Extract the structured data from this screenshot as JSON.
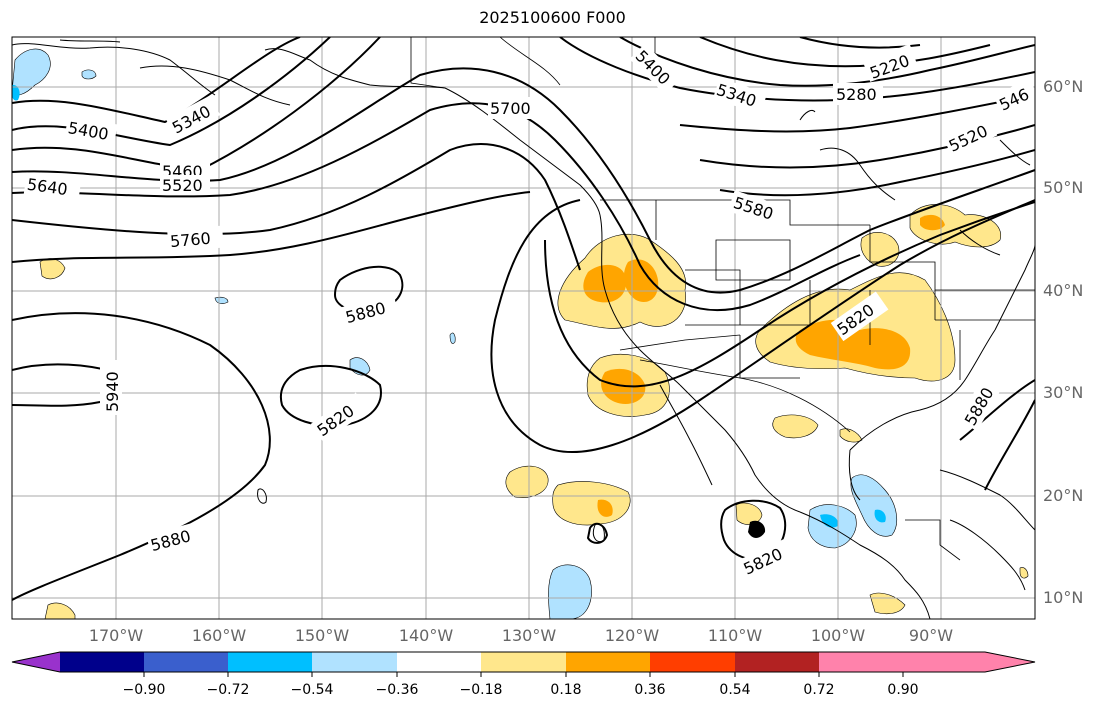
{
  "title": "2025100600 F000",
  "map": {
    "lat_labels": [
      "60°N",
      "50°N",
      "40°N",
      "30°N",
      "20°N",
      "10°N"
    ],
    "lon_labels": [
      "170°W",
      "160°W",
      "150°W",
      "140°W",
      "130°W",
      "120°W",
      "110°W",
      "100°W",
      "90°W"
    ],
    "contour_labels": [
      "5220",
      "5280",
      "5340",
      "5400",
      "5460",
      "5520",
      "5580",
      "5640",
      "5700",
      "5760",
      "5820",
      "5880",
      "5940",
      "546"
    ],
    "colors": {
      "contour": "#000000",
      "grid": "#aaaaaa",
      "coast": "#000000"
    }
  },
  "colorbar": {
    "tick_labels": [
      "−0.90",
      "−0.72",
      "−0.54",
      "−0.36",
      "−0.18",
      "0.18",
      "0.36",
      "0.54",
      "0.72",
      "0.90"
    ],
    "colors": [
      "#9932cc",
      "#00008b",
      "#3a5fcd",
      "#00bfff",
      "#b0e2ff",
      "#ffffff",
      "#ffe78c",
      "#ffa500",
      "#ff3e00",
      "#b22222",
      "#ff82ab"
    ]
  }
}
